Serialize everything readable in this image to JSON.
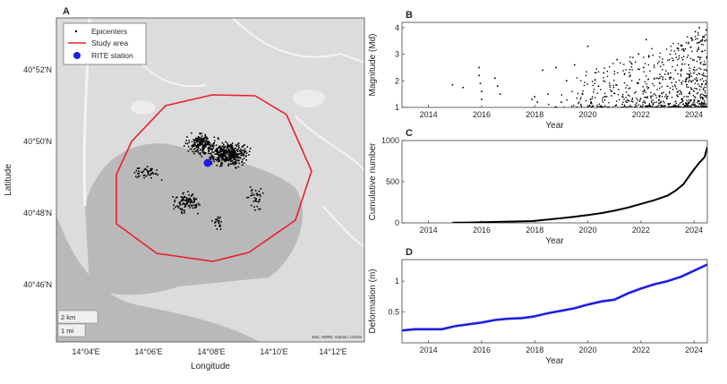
{
  "map_panel": {
    "letter": "A",
    "xlabel": "Longitude",
    "ylabel": "Latitude",
    "x_ticks": [
      "14°04'E",
      "14°06'E",
      "14°08'E",
      "14°10'E",
      "14°12'E"
    ],
    "y_ticks": [
      "40°52'N",
      "40°50'N",
      "40°48'N",
      "40°46'N"
    ],
    "legend": {
      "epicenters": "Epicenters",
      "study_area": "Study area",
      "station": "RITE station"
    },
    "scale_km": "2 km",
    "scale_mi": "1 mi",
    "attribution": "Esri, HERE, Garmin, USGS",
    "colors": {
      "study_area": "#e8202a",
      "station": "#1f1fe0",
      "epicenter": "#000000",
      "land": "#dcdcdc",
      "sea": "#b9b9b9"
    }
  },
  "chart_data": [
    {
      "type": "scatter",
      "letter": "B",
      "xlabel": "Year",
      "ylabel": "Magnitude (Md)",
      "x_ticks": [
        "2014",
        "2016",
        "2018",
        "2020",
        "2022",
        "2024"
      ],
      "y_ticks": [
        "1",
        "2",
        "3",
        "4"
      ],
      "xlim": [
        2013,
        2024.5
      ],
      "ylim": [
        1,
        4.2
      ],
      "points": [
        [
          2014.9,
          1.85
        ],
        [
          2015.3,
          1.75
        ],
        [
          2015.9,
          2.5
        ],
        [
          2015.9,
          2.2
        ],
        [
          2015.95,
          1.9
        ],
        [
          2016.0,
          1.6
        ],
        [
          2016.0,
          1.3
        ],
        [
          2016.5,
          2.1
        ],
        [
          2016.6,
          1.8
        ],
        [
          2016.7,
          1.5
        ],
        [
          2017.9,
          1.3
        ],
        [
          2018.0,
          1.4
        ],
        [
          2018.1,
          1.2
        ],
        [
          2018.3,
          2.4
        ],
        [
          2018.5,
          1.5
        ],
        [
          2018.8,
          2.5
        ],
        [
          2019.0,
          1.2
        ],
        [
          2019.2,
          2.0
        ],
        [
          2019.5,
          2.6
        ],
        [
          2019.8,
          1.5
        ],
        [
          2020.0,
          3.3
        ],
        [
          2020.1,
          1.3
        ],
        [
          2020.4,
          1.8
        ],
        [
          2020.6,
          2.3
        ],
        [
          2020.9,
          1.6
        ],
        [
          2021.1,
          2.8
        ],
        [
          2021.3,
          1.4
        ],
        [
          2021.6,
          2.2
        ],
        [
          2021.9,
          1.9
        ],
        [
          2022.1,
          2.5
        ],
        [
          2022.2,
          3.55
        ],
        [
          2022.3,
          2.9
        ],
        [
          2022.5,
          1.5
        ],
        [
          2022.6,
          2.1
        ],
        [
          2022.8,
          2.7
        ],
        [
          2023.0,
          1.8
        ],
        [
          2023.1,
          3.0
        ],
        [
          2023.3,
          2.4
        ],
        [
          2023.4,
          1.6
        ],
        [
          2023.6,
          3.2
        ],
        [
          2023.7,
          2.0
        ],
        [
          2023.8,
          2.6
        ],
        [
          2023.9,
          3.6
        ],
        [
          2024.0,
          2.3
        ],
        [
          2024.05,
          3.85
        ],
        [
          2024.1,
          1.7
        ],
        [
          2024.15,
          2.9
        ],
        [
          2024.2,
          4.0
        ],
        [
          2024.3,
          3.1
        ],
        [
          2024.35,
          2.2
        ],
        [
          2024.4,
          3.5
        ],
        [
          2024.45,
          1.9
        ]
      ]
    },
    {
      "type": "line",
      "letter": "C",
      "xlabel": "Year",
      "ylabel": "Cumulative number",
      "x_ticks": [
        "2014",
        "2016",
        "2018",
        "2020",
        "2022",
        "2024"
      ],
      "y_ticks": [
        "0",
        "500",
        "1000"
      ],
      "xlim": [
        2013,
        2024.5
      ],
      "ylim": [
        0,
        1000
      ],
      "x": [
        2014.9,
        2015.5,
        2016.0,
        2016.8,
        2017.9,
        2018.5,
        2019.0,
        2019.5,
        2020.0,
        2020.5,
        2021.0,
        2021.5,
        2022.0,
        2022.5,
        2023.0,
        2023.3,
        2023.6,
        2023.8,
        2024.0,
        2024.2,
        2024.4,
        2024.5
      ],
      "y": [
        2,
        4,
        8,
        14,
        22,
        40,
        58,
        75,
        95,
        118,
        148,
        185,
        230,
        275,
        330,
        390,
        470,
        560,
        650,
        730,
        800,
        920
      ]
    },
    {
      "type": "line",
      "letter": "D",
      "xlabel": "Year",
      "ylabel": "Deformation (m)",
      "x_ticks": [
        "2014",
        "2016",
        "2018",
        "2020",
        "2022",
        "2024"
      ],
      "y_ticks": [
        "0.5",
        "1"
      ],
      "xlim": [
        2013,
        2024.5
      ],
      "ylim": [
        0,
        1.35
      ],
      "x": [
        2013.0,
        2013.5,
        2014.0,
        2014.5,
        2015.0,
        2015.5,
        2016.0,
        2016.5,
        2017.0,
        2017.5,
        2018.0,
        2018.5,
        2019.0,
        2019.5,
        2020.0,
        2020.5,
        2021.0,
        2021.5,
        2022.0,
        2022.5,
        2023.0,
        2023.5,
        2024.0,
        2024.5
      ],
      "y": [
        0.2,
        0.22,
        0.22,
        0.22,
        0.27,
        0.3,
        0.33,
        0.37,
        0.39,
        0.4,
        0.43,
        0.48,
        0.52,
        0.56,
        0.62,
        0.67,
        0.7,
        0.8,
        0.88,
        0.95,
        1.0,
        1.07,
        1.17,
        1.27
      ]
    }
  ]
}
